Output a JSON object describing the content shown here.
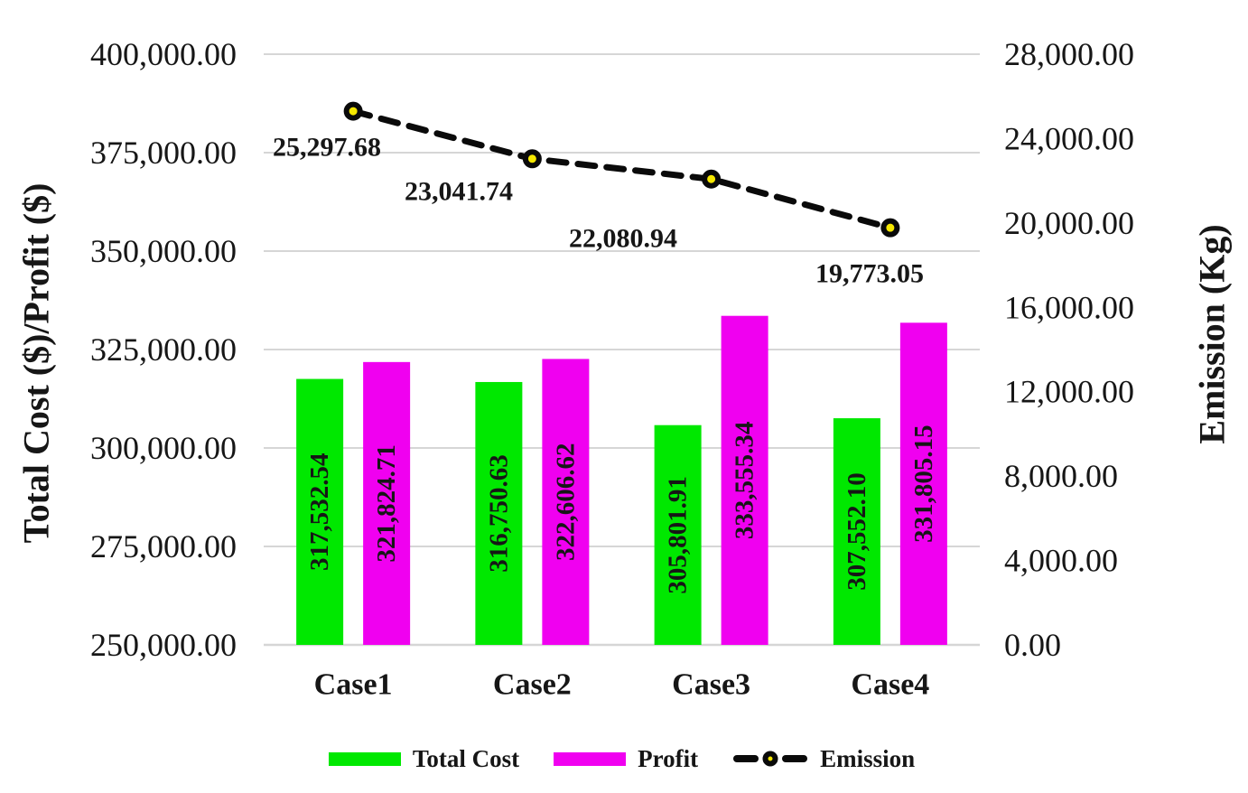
{
  "chart_data": {
    "type": "bar",
    "subtype": "combo-bar-line-dual-axis",
    "categories": [
      "Case1",
      "Case2",
      "Case3",
      "Case4"
    ],
    "series": [
      {
        "name": "Total Cost",
        "render": "bar",
        "axis": "left",
        "color": "#00e800",
        "values": [
          317532.54,
          316750.63,
          305801.91,
          307552.1
        ],
        "labels": [
          "317,532.54",
          "316,750.63",
          "305,801.91",
          "307,552.10"
        ]
      },
      {
        "name": "Profit",
        "render": "bar",
        "axis": "left",
        "color": "#f000f0",
        "values": [
          321824.71,
          322606.62,
          333555.34,
          331805.15
        ],
        "labels": [
          "321,824.71",
          "322,606.62",
          "333,555.34",
          "331,805.15"
        ]
      },
      {
        "name": "Emission",
        "render": "line",
        "axis": "right",
        "color": "#0a0a0a",
        "line_style": "dashed",
        "marker_fill": "#f6e800",
        "values": [
          25297.68,
          23041.74,
          22080.94,
          19773.05
        ],
        "labels": [
          "25,297.68",
          "23,041.74",
          "22,080.94",
          "19,773.05"
        ]
      }
    ],
    "left_axis": {
      "title": "Total Cost ($)/Profit ($)",
      "min": 250000,
      "max": 400000,
      "tick_labels": [
        "250,000.00",
        "275,000.00",
        "300,000.00",
        "325,000.00",
        "350,000.00",
        "375,000.00",
        "400,000.00"
      ]
    },
    "right_axis": {
      "title": "Emission (Kg)",
      "min": 0,
      "max": 28000,
      "tick_labels": [
        "0.00",
        "4,000.00",
        "8,000.00",
        "12,000.00",
        "16,000.00",
        "20,000.00",
        "24,000.00",
        "28,000.00"
      ]
    },
    "grid": true,
    "grid_color": "#d6d6d6",
    "legend_position": "bottom"
  },
  "legend": {
    "items": [
      {
        "label": "Total Cost",
        "swatch": "bar",
        "color": "#00e800"
      },
      {
        "label": "Profit",
        "swatch": "bar",
        "color": "#f000f0"
      },
      {
        "label": "Emission",
        "swatch": "dashed-line-with-marker",
        "color": "#0a0a0a",
        "marker_fill": "#f6e800"
      }
    ]
  }
}
